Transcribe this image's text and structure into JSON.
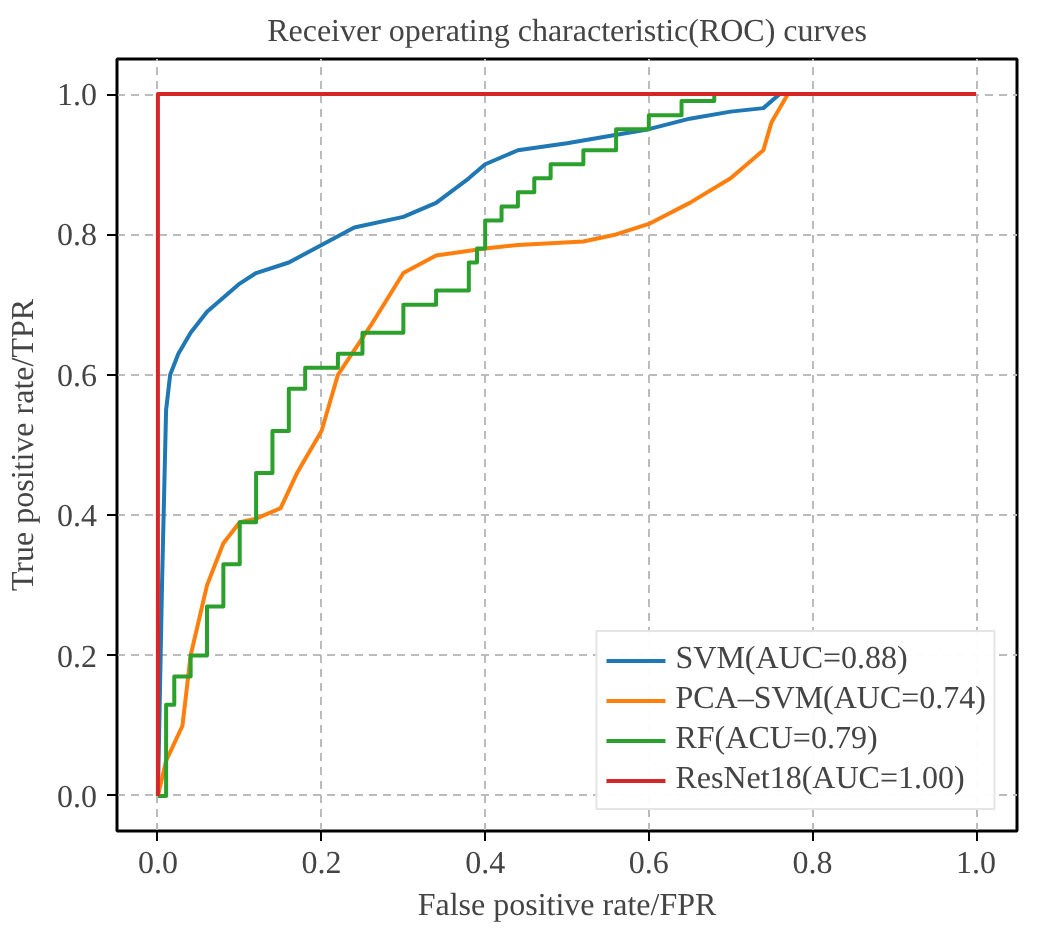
{
  "chart_data": {
    "type": "line",
    "title": "Receiver operating characteristic(ROC) curves",
    "xlabel": "False positive rate/FPR",
    "ylabel": "True positive rate/TPR",
    "xlim": [
      -0.05,
      1.05
    ],
    "ylim": [
      -0.05,
      1.05
    ],
    "xticks": [
      {
        "value": 0,
        "label": "0.0"
      },
      0.2,
      0.4,
      0.6,
      0.8,
      {
        "value": 1,
        "label": "1.0"
      }
    ],
    "yticks": [
      {
        "value": 0,
        "label": "0.0"
      },
      0.2,
      0.4,
      0.6,
      0.8,
      {
        "value": 1,
        "label": "1.0"
      }
    ],
    "grid": true,
    "legend": "bottom right",
    "line_style": "solid",
    "series": [
      {
        "name": "SVM(AUC=0.88)",
        "color": "#1f77b4",
        "x": [
          0,
          0.005,
          0.01,
          0.015,
          0.025,
          0.04,
          0.06,
          0.1,
          0.12,
          0.16,
          0.2,
          0.24,
          0.3,
          0.34,
          0.38,
          0.4,
          0.44,
          0.5,
          0.6,
          0.65,
          0.7,
          0.74,
          0.76
        ],
        "values": [
          0,
          0.3,
          0.55,
          0.6,
          0.63,
          0.66,
          0.69,
          0.73,
          0.745,
          0.76,
          0.785,
          0.81,
          0.825,
          0.845,
          0.88,
          0.9,
          0.92,
          0.93,
          0.95,
          0.965,
          0.975,
          0.98,
          1.0
        ]
      },
      {
        "name": "PCA–SVM(AUC=0.74)",
        "color": "#ff7f0e",
        "x": [
          0,
          0.01,
          0.03,
          0.04,
          0.06,
          0.08,
          0.1,
          0.12,
          0.15,
          0.17,
          0.2,
          0.22,
          0.26,
          0.3,
          0.34,
          0.4,
          0.44,
          0.52,
          0.56,
          0.6,
          0.65,
          0.7,
          0.72,
          0.74,
          0.75,
          0.77,
          1.0
        ],
        "values": [
          0,
          0.05,
          0.1,
          0.2,
          0.3,
          0.36,
          0.39,
          0.395,
          0.41,
          0.46,
          0.52,
          0.6,
          0.67,
          0.745,
          0.77,
          0.78,
          0.785,
          0.79,
          0.8,
          0.815,
          0.845,
          0.88,
          0.9,
          0.92,
          0.96,
          1.0,
          1.0
        ]
      },
      {
        "name": "RF(ACU=0.79)",
        "color": "#2ca02c",
        "type": "step",
        "x": [
          0,
          0.01,
          0.02,
          0.04,
          0.06,
          0.08,
          0.1,
          0.12,
          0.14,
          0.16,
          0.18,
          0.22,
          0.25,
          0.3,
          0.34,
          0.38,
          0.39,
          0.4,
          0.42,
          0.44,
          0.46,
          0.48,
          0.52,
          0.56,
          0.6,
          0.64,
          0.68
        ],
        "values": [
          0,
          0.13,
          0.17,
          0.2,
          0.27,
          0.33,
          0.39,
          0.46,
          0.52,
          0.58,
          0.61,
          0.63,
          0.66,
          0.7,
          0.72,
          0.76,
          0.78,
          0.82,
          0.84,
          0.86,
          0.88,
          0.9,
          0.92,
          0.95,
          0.97,
          0.99,
          1.0
        ]
      },
      {
        "name": "ResNet18(AUC=1.00)",
        "color": "#d62728",
        "x": [
          0,
          0,
          1.0
        ],
        "values": [
          0,
          1.0,
          1.0
        ]
      }
    ]
  }
}
